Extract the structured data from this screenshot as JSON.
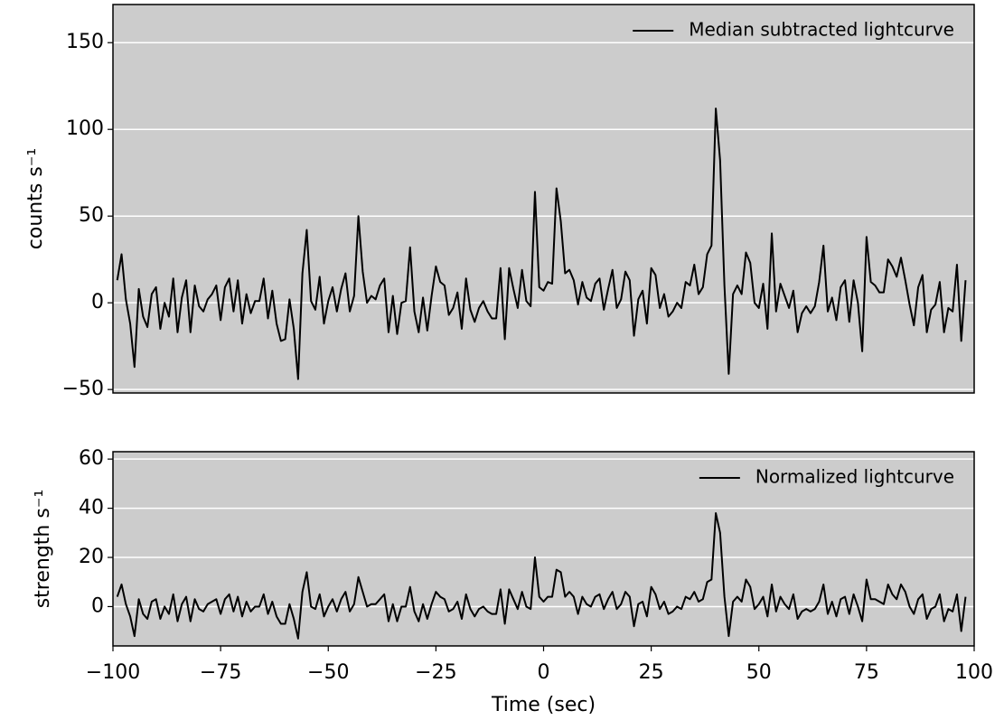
{
  "chart_data": [
    {
      "type": "line",
      "ylabel": "counts s⁻¹",
      "legend": "upper right",
      "grid": true,
      "xlim": [
        -100,
        100
      ],
      "ylim": [
        -52,
        172
      ],
      "yticks": [
        {
          "value": -50,
          "label": "−50"
        },
        0,
        50,
        100,
        150
      ],
      "x": [
        -99,
        -98,
        -97,
        -96,
        -95,
        -94,
        -93,
        -92,
        -91,
        -90,
        -89,
        -88,
        -87,
        -86,
        -85,
        -84,
        -83,
        -82,
        -81,
        -80,
        -79,
        -78,
        -77,
        -76,
        -75,
        -74,
        -73,
        -72,
        -71,
        -70,
        -69,
        -68,
        -67,
        -66,
        -65,
        -64,
        -63,
        -62,
        -61,
        -60,
        -59,
        -58,
        -57,
        -56,
        -55,
        -54,
        -53,
        -52,
        -51,
        -50,
        -49,
        -48,
        -47,
        -46,
        -45,
        -44,
        -43,
        -42,
        -41,
        -40,
        -39,
        -38,
        -37,
        -36,
        -35,
        -34,
        -33,
        -32,
        -31,
        -30,
        -29,
        -28,
        -27,
        -26,
        -25,
        -24,
        -23,
        -22,
        -21,
        -20,
        -19,
        -18,
        -17,
        -16,
        -15,
        -14,
        -13,
        -12,
        -11,
        -10,
        -9,
        -8,
        -7,
        -6,
        -5,
        -4,
        -3,
        -2,
        -1,
        0,
        1,
        2,
        3,
        4,
        5,
        6,
        7,
        8,
        9,
        10,
        11,
        12,
        13,
        14,
        15,
        16,
        17,
        18,
        19,
        20,
        21,
        22,
        23,
        24,
        25,
        26,
        27,
        28,
        29,
        30,
        31,
        32,
        33,
        34,
        35,
        36,
        37,
        38,
        39,
        40,
        41,
        42,
        43,
        44,
        45,
        46,
        47,
        48,
        49,
        50,
        51,
        52,
        53,
        54,
        55,
        56,
        57,
        58,
        59,
        60,
        61,
        62,
        63,
        64,
        65,
        66,
        67,
        68,
        69,
        70,
        71,
        72,
        73,
        74,
        75,
        76,
        77,
        78,
        79,
        80,
        81,
        82,
        83,
        84,
        85,
        86,
        87,
        88,
        89,
        90,
        91,
        92,
        93,
        94,
        95,
        96,
        97,
        98
      ],
      "series": [
        {
          "name": "Median subtracted lightcurve",
          "color": "#000000",
          "values": [
            13,
            28,
            2,
            -12,
            -37,
            8,
            -8,
            -14,
            5,
            9,
            -15,
            0,
            -8,
            14,
            -17,
            3,
            13,
            -17,
            10,
            -2,
            -5,
            2,
            5,
            10,
            -10,
            9,
            14,
            -5,
            13,
            -12,
            5,
            -6,
            1,
            1,
            14,
            -9,
            7,
            -12,
            -22,
            -21,
            2,
            -15,
            -44,
            17,
            42,
            1,
            -4,
            15,
            -12,
            1,
            9,
            -5,
            8,
            17,
            -5,
            4,
            50,
            18,
            0,
            4,
            2,
            10,
            14,
            -17,
            4,
            -18,
            0,
            1,
            32,
            -5,
            -17,
            3,
            -16,
            4,
            21,
            12,
            10,
            -7,
            -3,
            6,
            -15,
            14,
            -4,
            -11,
            -3,
            1,
            -5,
            -9,
            -9,
            20,
            -21,
            20,
            8,
            -3,
            19,
            1,
            -2,
            64,
            9,
            7,
            12,
            11,
            66,
            47,
            17,
            19,
            13,
            -1,
            12,
            3,
            1,
            11,
            14,
            -4,
            8,
            19,
            -3,
            2,
            18,
            13,
            -19,
            2,
            7,
            -12,
            20,
            16,
            -3,
            5,
            -8,
            -5,
            0,
            -3,
            12,
            10,
            22,
            5,
            9,
            28,
            33,
            112,
            82,
            10,
            -41,
            5,
            10,
            5,
            29,
            23,
            0,
            -3,
            11,
            -15,
            40,
            -5,
            11,
            4,
            -3,
            7,
            -17,
            -6,
            -2,
            -6,
            -2,
            12,
            33,
            -5,
            3,
            -10,
            9,
            13,
            -11,
            13,
            0,
            -28,
            38,
            12,
            10,
            6,
            6,
            25,
            21,
            15,
            26,
            13,
            -1,
            -13,
            9,
            16,
            -17,
            -4,
            -1,
            12,
            -17,
            -3,
            -5,
            22,
            -22,
            13
          ]
        }
      ]
    },
    {
      "type": "line",
      "ylabel": "strength s⁻¹",
      "xlabel": "Time (sec)",
      "legend": "upper right",
      "grid": true,
      "xlim": [
        -100,
        100
      ],
      "ylim": [
        -16,
        63
      ],
      "yticks": [
        0,
        20,
        40,
        60
      ],
      "xticks": [
        {
          "value": -100,
          "label": "−100"
        },
        {
          "value": -75,
          "label": "−75"
        },
        {
          "value": -50,
          "label": "−50"
        },
        {
          "value": -25,
          "label": "−25"
        },
        0,
        25,
        50,
        75,
        100
      ],
      "x": [
        -99,
        -98,
        -97,
        -96,
        -95,
        -94,
        -93,
        -92,
        -91,
        -90,
        -89,
        -88,
        -87,
        -86,
        -85,
        -84,
        -83,
        -82,
        -81,
        -80,
        -79,
        -78,
        -77,
        -76,
        -75,
        -74,
        -73,
        -72,
        -71,
        -70,
        -69,
        -68,
        -67,
        -66,
        -65,
        -64,
        -63,
        -62,
        -61,
        -60,
        -59,
        -58,
        -57,
        -56,
        -55,
        -54,
        -53,
        -52,
        -51,
        -50,
        -49,
        -48,
        -47,
        -46,
        -45,
        -44,
        -43,
        -42,
        -41,
        -40,
        -39,
        -38,
        -37,
        -36,
        -35,
        -34,
        -33,
        -32,
        -31,
        -30,
        -29,
        -28,
        -27,
        -26,
        -25,
        -24,
        -23,
        -22,
        -21,
        -20,
        -19,
        -18,
        -17,
        -16,
        -15,
        -14,
        -13,
        -12,
        -11,
        -10,
        -9,
        -8,
        -7,
        -6,
        -5,
        -4,
        -3,
        -2,
        -1,
        0,
        1,
        2,
        3,
        4,
        5,
        6,
        7,
        8,
        9,
        10,
        11,
        12,
        13,
        14,
        15,
        16,
        17,
        18,
        19,
        20,
        21,
        22,
        23,
        24,
        25,
        26,
        27,
        28,
        29,
        30,
        31,
        32,
        33,
        34,
        35,
        36,
        37,
        38,
        39,
        40,
        41,
        42,
        43,
        44,
        45,
        46,
        47,
        48,
        49,
        50,
        51,
        52,
        53,
        54,
        55,
        56,
        57,
        58,
        59,
        60,
        61,
        62,
        63,
        64,
        65,
        66,
        67,
        68,
        69,
        70,
        71,
        72,
        73,
        74,
        75,
        76,
        77,
        78,
        79,
        80,
        81,
        82,
        83,
        84,
        85,
        86,
        87,
        88,
        89,
        90,
        91,
        92,
        93,
        94,
        95,
        96,
        97,
        98
      ],
      "series": [
        {
          "name": "Normalized lightcurve",
          "color": "#000000",
          "values": [
            4,
            9,
            1,
            -4,
            -12,
            3,
            -3,
            -5,
            2,
            3,
            -5,
            0,
            -3,
            5,
            -6,
            1,
            4,
            -6,
            3,
            -1,
            -2,
            1,
            2,
            3,
            -3,
            3,
            5,
            -2,
            4,
            -4,
            2,
            -2,
            0,
            0,
            5,
            -3,
            2,
            -4,
            -7,
            -7,
            1,
            -5,
            -13,
            6,
            14,
            0,
            -1,
            5,
            -4,
            0,
            3,
            -2,
            3,
            6,
            -2,
            1,
            12,
            6,
            0,
            1,
            1,
            3,
            5,
            -6,
            1,
            -6,
            0,
            0,
            8,
            -2,
            -6,
            1,
            -5,
            1,
            6,
            4,
            3,
            -2,
            -1,
            2,
            -5,
            5,
            -1,
            -4,
            -1,
            0,
            -2,
            -3,
            -3,
            7,
            -7,
            7,
            3,
            -1,
            6,
            0,
            -1,
            20,
            4,
            2,
            4,
            4,
            15,
            14,
            4,
            6,
            4,
            -3,
            4,
            1,
            0,
            4,
            5,
            -1,
            3,
            6,
            -1,
            1,
            6,
            4,
            -8,
            1,
            2,
            -4,
            8,
            5,
            -1,
            2,
            -3,
            -2,
            0,
            -1,
            4,
            3,
            6,
            2,
            3,
            10,
            11,
            38,
            30,
            4,
            -12,
            2,
            4,
            2,
            11,
            8,
            -1,
            1,
            4,
            -4,
            9,
            -2,
            4,
            1,
            -1,
            5,
            -5,
            -2,
            -1,
            -2,
            -1,
            2,
            9,
            -3,
            2,
            -4,
            3,
            4,
            -3,
            5,
            0,
            -6,
            11,
            3,
            3,
            2,
            1,
            9,
            5,
            3,
            9,
            6,
            0,
            -3,
            3,
            5,
            -5,
            -1,
            0,
            5,
            -6,
            -1,
            -2,
            5,
            -10,
            4
          ]
        }
      ]
    }
  ]
}
